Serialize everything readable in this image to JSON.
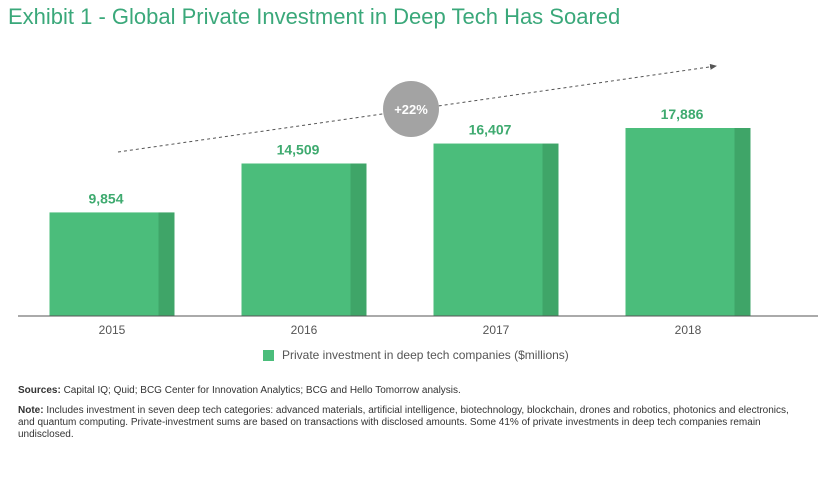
{
  "title": "Exhibit 1 - Global Private Investment in Deep Tech Has Soared",
  "chart_data": {
    "type": "bar",
    "categories": [
      "2015",
      "2016",
      "2017",
      "2018"
    ],
    "series": [
      {
        "name": "Private investment in deep tech companies ($millions)",
        "values": [
          9854,
          14509,
          16407,
          17886
        ],
        "value_labels": [
          "9,854",
          "14,509",
          "16,407",
          "17,886"
        ]
      }
    ],
    "ylim": [
      0,
      17886
    ],
    "grid": false,
    "legend": "bottom",
    "annotation": "+22%"
  },
  "colors": {
    "title": "#3aa87a",
    "bar": "#4bbd7b",
    "bar_shade": "#3fa568",
    "value_label": "#3eaa6f",
    "badge": "#a3a3a3",
    "axis": "#555555"
  },
  "footer": {
    "sources_label": "Sources:",
    "sources_text": "Capital IQ; Quid; BCG Center for Innovation Analytics; BCG and Hello Tomorrow analysis.",
    "note_label": "Note:",
    "note_text": "Includes investment in seven deep tech categories: advanced materials, artificial intelligence, biotechnology, blockchain, drones and robotics, photonics and electronics, and quantum computing. Private-investment sums are based on transactions with disclosed amounts. Some 41% of private investments in deep tech companies remain undisclosed."
  }
}
